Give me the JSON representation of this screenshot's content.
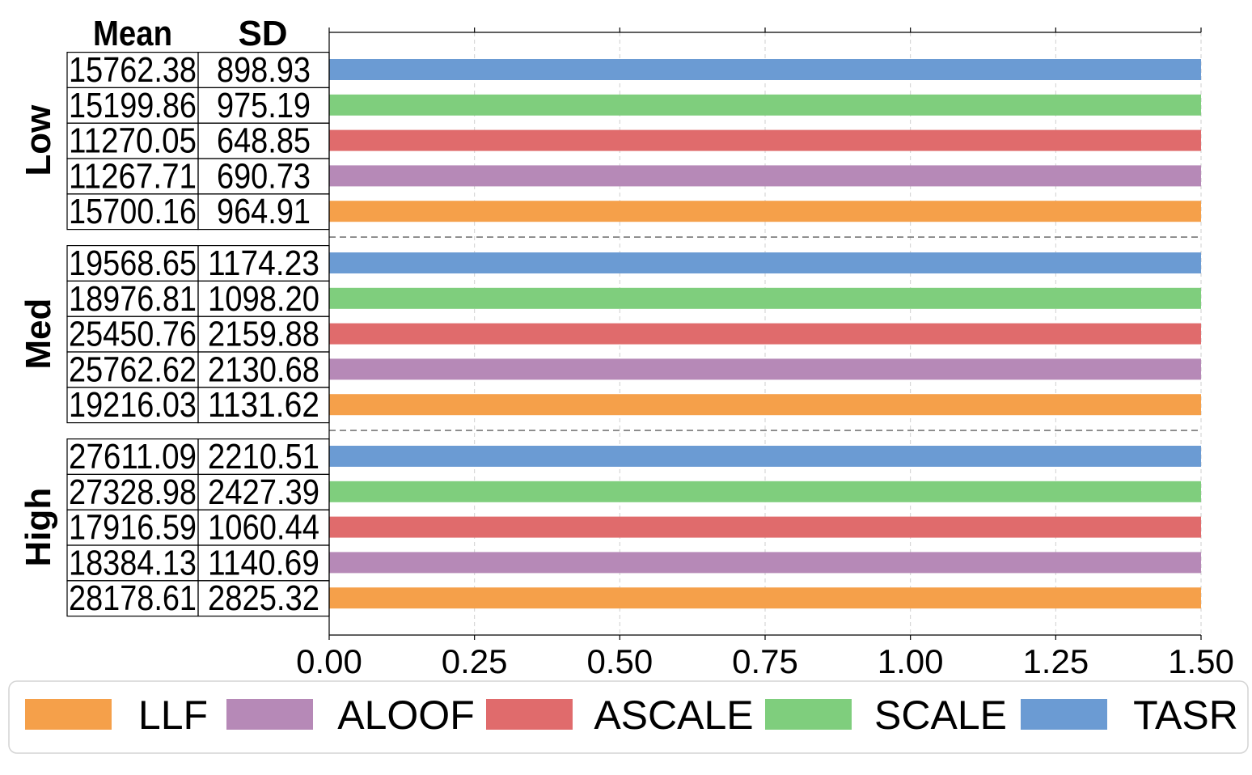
{
  "chart_data": {
    "type": "bar",
    "orientation": "horizontal",
    "xlim": [
      0,
      1.5
    ],
    "xticks": [
      "0.00",
      "0.25",
      "0.50",
      "0.75",
      "1.00",
      "1.25",
      "1.50"
    ],
    "grid": true,
    "legend_placement": "bottom",
    "table_headers": [
      "Mean",
      "SD"
    ],
    "legend": [
      {
        "name": "LLF",
        "color": "#f5a04a"
      },
      {
        "name": "ALOOF",
        "color": "#b689b7"
      },
      {
        "name": "ASCALE",
        "color": "#e06b6c"
      },
      {
        "name": "SCALE",
        "color": "#7fce7d"
      },
      {
        "name": "TASR",
        "color": "#6b9bd3"
      }
    ],
    "groups": [
      {
        "label": "Low",
        "rows": [
          {
            "series": "TASR",
            "value": 1.5,
            "mean": "15762.38",
            "sd": "898.93"
          },
          {
            "series": "SCALE",
            "value": 1.5,
            "mean": "15199.86",
            "sd": "975.19"
          },
          {
            "series": "ASCALE",
            "value": 1.5,
            "mean": "11270.05",
            "sd": "648.85"
          },
          {
            "series": "ALOOF",
            "value": 1.5,
            "mean": "11267.71",
            "sd": "690.73"
          },
          {
            "series": "LLF",
            "value": 1.5,
            "mean": "15700.16",
            "sd": "964.91"
          }
        ]
      },
      {
        "label": "Med",
        "rows": [
          {
            "series": "TASR",
            "value": 1.5,
            "mean": "19568.65",
            "sd": "1174.23"
          },
          {
            "series": "SCALE",
            "value": 1.5,
            "mean": "18976.81",
            "sd": "1098.20"
          },
          {
            "series": "ASCALE",
            "value": 1.5,
            "mean": "25450.76",
            "sd": "2159.88"
          },
          {
            "series": "ALOOF",
            "value": 1.5,
            "mean": "25762.62",
            "sd": "2130.68"
          },
          {
            "series": "LLF",
            "value": 1.5,
            "mean": "19216.03",
            "sd": "1131.62"
          }
        ]
      },
      {
        "label": "High",
        "rows": [
          {
            "series": "TASR",
            "value": 1.5,
            "mean": "27611.09",
            "sd": "2210.51"
          },
          {
            "series": "SCALE",
            "value": 1.5,
            "mean": "27328.98",
            "sd": "2427.39"
          },
          {
            "series": "ASCALE",
            "value": 1.5,
            "mean": "17916.59",
            "sd": "1060.44"
          },
          {
            "series": "ALOOF",
            "value": 1.5,
            "mean": "18384.13",
            "sd": "1140.69"
          },
          {
            "series": "LLF",
            "value": 1.5,
            "mean": "28178.61",
            "sd": "2825.32"
          }
        ]
      }
    ]
  }
}
